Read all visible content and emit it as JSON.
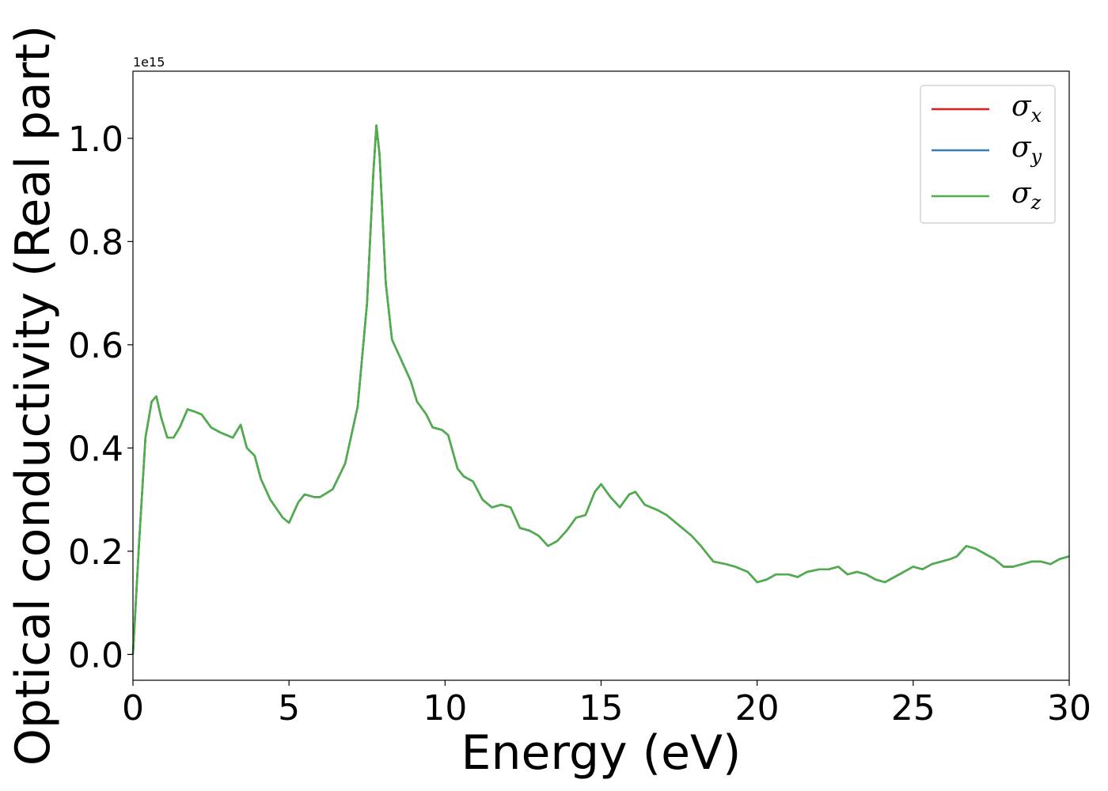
{
  "chart_data": {
    "type": "line",
    "xlabel": "Energy (eV)",
    "ylabel": "Optical conductivity (Real part)",
    "y_offset_label": "1e15",
    "xlim": [
      0,
      30
    ],
    "ylim": [
      -0.05,
      1.13
    ],
    "x_ticks": [
      0,
      5,
      10,
      15,
      20,
      25,
      30
    ],
    "x_tick_labels": [
      "0",
      "5",
      "10",
      "15",
      "20",
      "25",
      "30"
    ],
    "y_ticks": [
      0.0,
      0.2,
      0.4,
      0.6,
      0.8,
      1.0
    ],
    "y_tick_labels": [
      "0.0",
      "0.2",
      "0.4",
      "0.6",
      "0.8",
      "1.0"
    ],
    "grid": false,
    "legend_position": "top-right",
    "colors": {
      "sigma_x": "#e41a1c",
      "sigma_y": "#377eb8",
      "sigma_z": "#4daf4a"
    },
    "x": [
      0,
      0.2,
      0.4,
      0.6,
      0.75,
      0.9,
      1.1,
      1.3,
      1.5,
      1.75,
      2.0,
      2.2,
      2.5,
      2.8,
      3.0,
      3.2,
      3.45,
      3.65,
      3.9,
      4.1,
      4.4,
      4.8,
      5.0,
      5.3,
      5.5,
      5.8,
      6.0,
      6.4,
      6.8,
      7.2,
      7.5,
      7.7,
      7.8,
      7.9,
      8.1,
      8.3,
      8.6,
      8.9,
      9.1,
      9.4,
      9.6,
      9.9,
      10.1,
      10.4,
      10.6,
      10.9,
      11.2,
      11.5,
      11.8,
      12.1,
      12.4,
      12.7,
      13.0,
      13.3,
      13.6,
      13.9,
      14.2,
      14.5,
      14.8,
      15.0,
      15.3,
      15.6,
      15.9,
      16.1,
      16.4,
      16.8,
      17.1,
      17.5,
      17.9,
      18.2,
      18.6,
      19.0,
      19.3,
      19.7,
      20.0,
      20.3,
      20.6,
      21.0,
      21.3,
      21.6,
      22.0,
      22.3,
      22.6,
      22.9,
      23.2,
      23.5,
      23.8,
      24.1,
      24.4,
      24.7,
      25.0,
      25.3,
      25.6,
      25.9,
      26.2,
      26.4,
      26.7,
      27.0,
      27.3,
      27.6,
      27.9,
      28.2,
      28.5,
      28.8,
      29.1,
      29.4,
      29.7,
      30.0
    ],
    "series": [
      {
        "name": "σx",
        "values": [
          0.0,
          0.22,
          0.42,
          0.49,
          0.5,
          0.46,
          0.42,
          0.42,
          0.44,
          0.475,
          0.47,
          0.465,
          0.44,
          0.43,
          0.425,
          0.42,
          0.445,
          0.4,
          0.385,
          0.34,
          0.3,
          0.265,
          0.255,
          0.295,
          0.31,
          0.305,
          0.305,
          0.32,
          0.37,
          0.48,
          0.68,
          0.93,
          1.025,
          0.97,
          0.72,
          0.61,
          0.57,
          0.53,
          0.49,
          0.465,
          0.44,
          0.435,
          0.425,
          0.36,
          0.345,
          0.335,
          0.3,
          0.285,
          0.29,
          0.285,
          0.245,
          0.24,
          0.23,
          0.21,
          0.22,
          0.24,
          0.265,
          0.27,
          0.315,
          0.33,
          0.305,
          0.285,
          0.31,
          0.315,
          0.29,
          0.28,
          0.27,
          0.25,
          0.23,
          0.21,
          0.18,
          0.175,
          0.17,
          0.16,
          0.14,
          0.145,
          0.155,
          0.155,
          0.15,
          0.16,
          0.165,
          0.165,
          0.17,
          0.155,
          0.16,
          0.155,
          0.145,
          0.14,
          0.15,
          0.16,
          0.17,
          0.165,
          0.175,
          0.18,
          0.185,
          0.19,
          0.21,
          0.205,
          0.195,
          0.185,
          0.17,
          0.17,
          0.175,
          0.18,
          0.18,
          0.175,
          0.185,
          0.19
        ]
      },
      {
        "name": "σy",
        "values": [
          0.0,
          0.22,
          0.42,
          0.49,
          0.5,
          0.46,
          0.42,
          0.42,
          0.44,
          0.475,
          0.47,
          0.465,
          0.44,
          0.43,
          0.425,
          0.42,
          0.445,
          0.4,
          0.385,
          0.34,
          0.3,
          0.265,
          0.255,
          0.295,
          0.31,
          0.305,
          0.305,
          0.32,
          0.37,
          0.48,
          0.68,
          0.93,
          1.025,
          0.97,
          0.72,
          0.61,
          0.57,
          0.53,
          0.49,
          0.465,
          0.44,
          0.435,
          0.425,
          0.36,
          0.345,
          0.335,
          0.3,
          0.285,
          0.29,
          0.285,
          0.245,
          0.24,
          0.23,
          0.21,
          0.22,
          0.24,
          0.265,
          0.27,
          0.315,
          0.33,
          0.305,
          0.285,
          0.31,
          0.315,
          0.29,
          0.28,
          0.27,
          0.25,
          0.23,
          0.21,
          0.18,
          0.175,
          0.17,
          0.16,
          0.14,
          0.145,
          0.155,
          0.155,
          0.15,
          0.16,
          0.165,
          0.165,
          0.17,
          0.155,
          0.16,
          0.155,
          0.145,
          0.14,
          0.15,
          0.16,
          0.17,
          0.165,
          0.175,
          0.18,
          0.185,
          0.19,
          0.21,
          0.205,
          0.195,
          0.185,
          0.17,
          0.17,
          0.175,
          0.18,
          0.18,
          0.175,
          0.185,
          0.19
        ]
      },
      {
        "name": "σz",
        "values": [
          0.0,
          0.22,
          0.42,
          0.49,
          0.5,
          0.46,
          0.42,
          0.42,
          0.44,
          0.475,
          0.47,
          0.465,
          0.44,
          0.43,
          0.425,
          0.42,
          0.445,
          0.4,
          0.385,
          0.34,
          0.3,
          0.265,
          0.255,
          0.295,
          0.31,
          0.305,
          0.305,
          0.32,
          0.37,
          0.48,
          0.68,
          0.93,
          1.025,
          0.97,
          0.72,
          0.61,
          0.57,
          0.53,
          0.49,
          0.465,
          0.44,
          0.435,
          0.425,
          0.36,
          0.345,
          0.335,
          0.3,
          0.285,
          0.29,
          0.285,
          0.245,
          0.24,
          0.23,
          0.21,
          0.22,
          0.24,
          0.265,
          0.27,
          0.315,
          0.33,
          0.305,
          0.285,
          0.31,
          0.315,
          0.29,
          0.28,
          0.27,
          0.25,
          0.23,
          0.21,
          0.18,
          0.175,
          0.17,
          0.16,
          0.14,
          0.145,
          0.155,
          0.155,
          0.15,
          0.16,
          0.165,
          0.165,
          0.17,
          0.155,
          0.16,
          0.155,
          0.145,
          0.14,
          0.15,
          0.16,
          0.17,
          0.165,
          0.175,
          0.18,
          0.185,
          0.19,
          0.21,
          0.205,
          0.195,
          0.185,
          0.17,
          0.17,
          0.175,
          0.18,
          0.18,
          0.175,
          0.185,
          0.19
        ]
      }
    ],
    "legend": [
      {
        "symbol": "σ",
        "subscript": "x"
      },
      {
        "symbol": "σ",
        "subscript": "y"
      },
      {
        "symbol": "σ",
        "subscript": "z"
      }
    ]
  }
}
